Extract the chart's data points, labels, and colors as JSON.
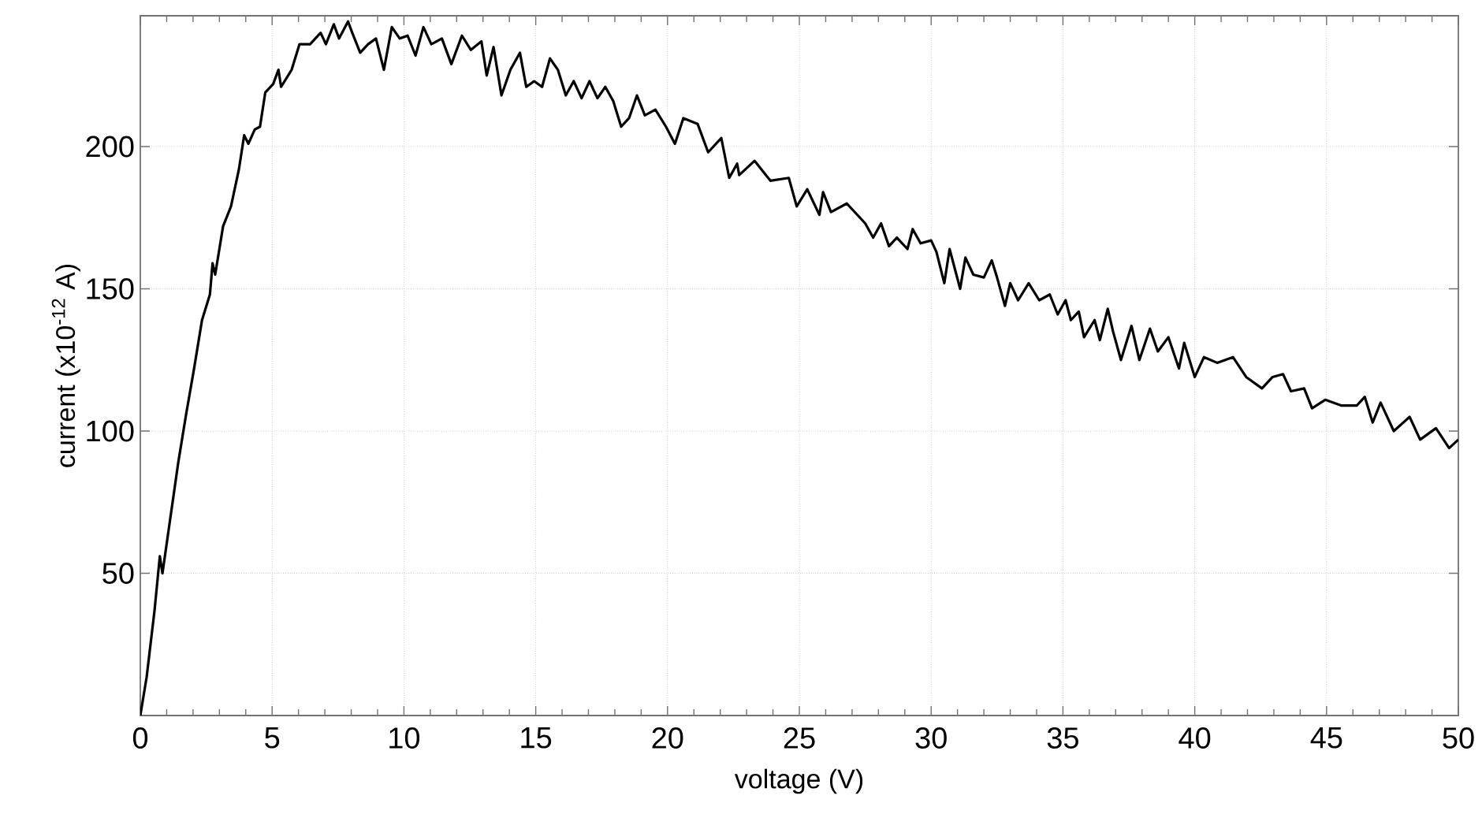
{
  "chart_data": {
    "type": "line",
    "xlabel": "voltage (V)",
    "ylabel": "current (x10$^{-12}$ A)",
    "xlim": [
      0,
      50
    ],
    "ylim": [
      0,
      246
    ],
    "xticks": [
      0,
      5,
      10,
      15,
      20,
      25,
      30,
      35,
      40,
      45,
      50
    ],
    "yticks": [
      50,
      100,
      150,
      200
    ],
    "grid": true,
    "x": [
      0,
      0.24,
      0.54,
      0.74,
      0.84,
      1.04,
      1.44,
      1.74,
      2.04,
      2.34,
      2.64,
      2.74,
      2.84,
      3.14,
      3.44,
      3.74,
      3.94,
      4.1,
      4.34,
      4.54,
      4.74,
      5.04,
      5.24,
      5.34,
      5.74,
      6.04,
      6.44,
      6.84,
      7.04,
      7.34,
      7.54,
      7.88,
      8.04,
      8.34,
      8.64,
      8.94,
      9.24,
      9.54,
      9.84,
      10.14,
      10.44,
      10.74,
      11.04,
      11.44,
      11.8,
      12.2,
      12.54,
      12.94,
      13.14,
      13.4,
      13.7,
      14.04,
      14.4,
      14.64,
      14.94,
      15.24,
      15.54,
      15.84,
      16.14,
      16.44,
      16.74,
      17.04,
      17.34,
      17.64,
      17.94,
      18.24,
      18.54,
      18.84,
      19.14,
      19.54,
      19.94,
      20.28,
      20.6,
      21.14,
      21.54,
      22.04,
      22.34,
      22.64,
      22.72,
      23.3,
      23.9,
      24.6,
      24.9,
      25.3,
      25.76,
      25.9,
      26.2,
      26.8,
      27.5,
      27.8,
      28.1,
      28.4,
      28.7,
      29.1,
      29.3,
      29.6,
      30.0,
      30.2,
      30.5,
      30.7,
      31.1,
      31.3,
      31.6,
      32.0,
      32.3,
      32.5,
      32.8,
      33.0,
      33.3,
      33.7,
      34.1,
      34.5,
      34.8,
      35.1,
      35.3,
      35.6,
      35.8,
      36.2,
      36.4,
      36.7,
      36.9,
      37.2,
      37.6,
      37.9,
      38.3,
      38.6,
      39.0,
      39.4,
      39.6,
      40.0,
      40.35,
      40.85,
      41.45,
      41.95,
      42.55,
      42.95,
      43.35,
      43.65,
      44.15,
      44.45,
      44.95,
      45.55,
      46.15,
      46.45,
      46.75,
      47.05,
      47.55,
      48.15,
      48.55,
      49.15,
      49.65,
      50.0
    ],
    "series": [
      {
        "color": "#000000",
        "values": [
          0,
          13.5,
          37,
          56,
          50,
          63,
          89,
          106,
          122,
          139,
          148,
          159,
          155,
          172,
          179,
          192,
          204,
          201,
          206,
          207,
          219,
          222,
          227,
          221,
          227,
          236,
          236,
          240,
          236,
          243,
          238,
          244,
          240,
          233,
          236,
          238,
          227,
          242,
          238,
          239,
          232,
          242,
          236,
          238,
          229,
          239,
          234,
          237,
          225,
          235,
          218,
          227,
          233,
          221,
          223,
          221,
          231,
          227,
          218,
          223,
          217,
          223,
          217,
          221,
          216,
          207,
          210,
          218,
          211,
          213,
          207,
          201,
          210,
          208,
          198,
          203,
          189,
          194,
          190,
          195,
          188,
          189,
          179,
          185,
          176,
          184,
          177,
          180,
          173,
          168,
          173,
          165,
          168,
          164,
          171,
          166,
          167,
          163,
          152,
          164,
          150,
          161,
          155,
          154,
          160,
          154,
          144,
          152,
          146,
          152,
          146,
          148,
          141,
          146,
          139,
          142,
          133,
          139,
          132,
          143,
          135,
          125,
          137,
          125,
          136,
          128,
          133,
          122,
          131,
          119,
          126,
          124,
          126,
          119,
          115,
          119,
          120,
          114,
          115,
          108,
          111,
          109,
          109,
          112,
          103,
          110,
          100,
          105,
          97,
          101,
          94,
          97
        ]
      }
    ]
  }
}
